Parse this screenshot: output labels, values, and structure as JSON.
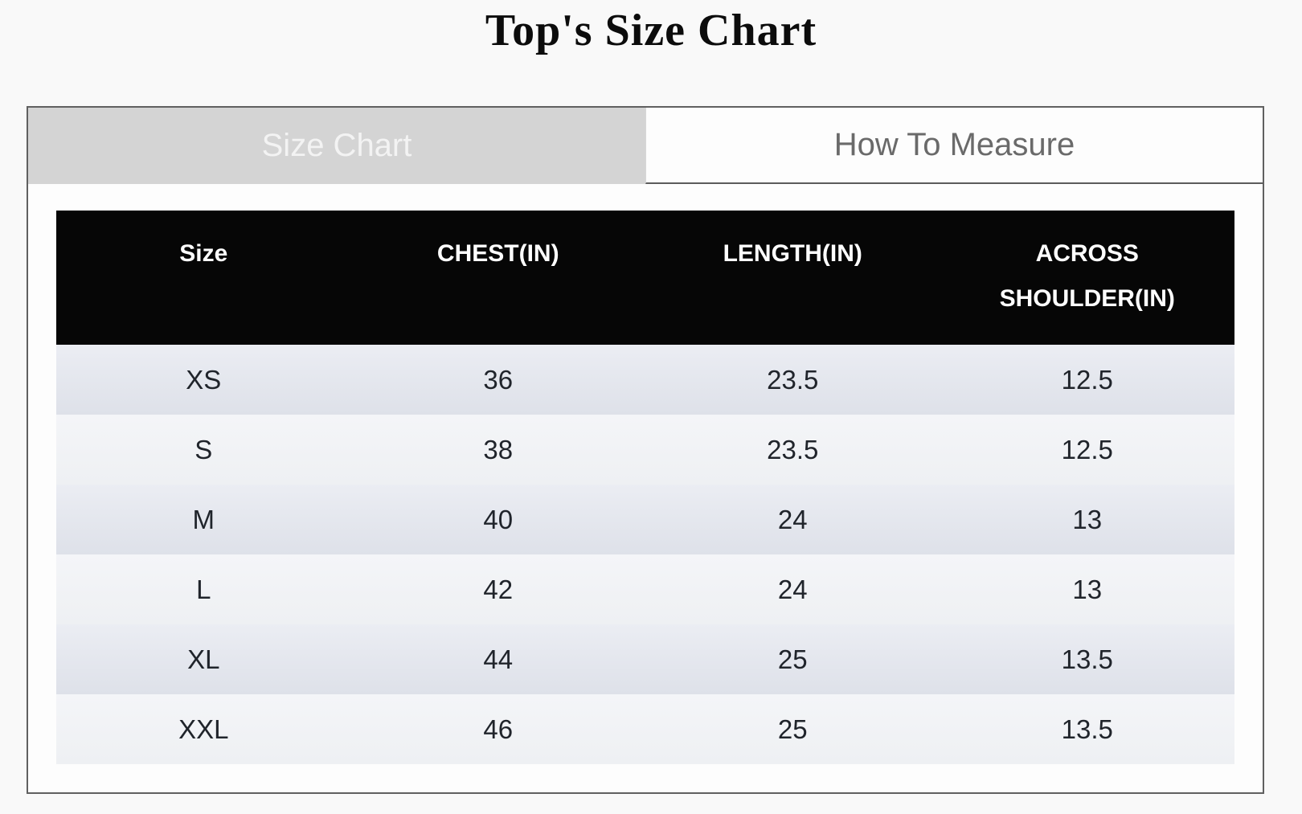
{
  "page": {
    "title": "Top's Size Chart"
  },
  "tabs": [
    {
      "label": "Size Chart",
      "active": true
    },
    {
      "label": "How To Measure",
      "active": false
    }
  ],
  "table": {
    "headers": [
      "Size",
      "CHEST(IN)",
      "LENGTH(IN)",
      "ACROSS SHOULDER(IN)"
    ],
    "rows": [
      [
        "XS",
        "36",
        "23.5",
        "12.5"
      ],
      [
        "S",
        "38",
        "23.5",
        "12.5"
      ],
      [
        "M",
        "40",
        "24",
        "13"
      ],
      [
        "L",
        "42",
        "24",
        "13"
      ],
      [
        "XL",
        "44",
        "25",
        "13.5"
      ],
      [
        "XXL",
        "46",
        "25",
        "13.5"
      ]
    ]
  },
  "colors": {
    "page_bg": "#f9f9f9",
    "panel_border": "#606060",
    "tab_active_bg": "#d4d4d4",
    "tab_active_text": "#f3f3f3",
    "tab_inactive_bg": "#fdfdfd",
    "tab_inactive_text": "#6a6a6a",
    "table_header_bg": "#060606",
    "table_header_text": "#ffffff",
    "row_odd_bg": "#e2e5ec",
    "row_even_bg": "#f1f2f6",
    "row_text": "#20242b"
  }
}
